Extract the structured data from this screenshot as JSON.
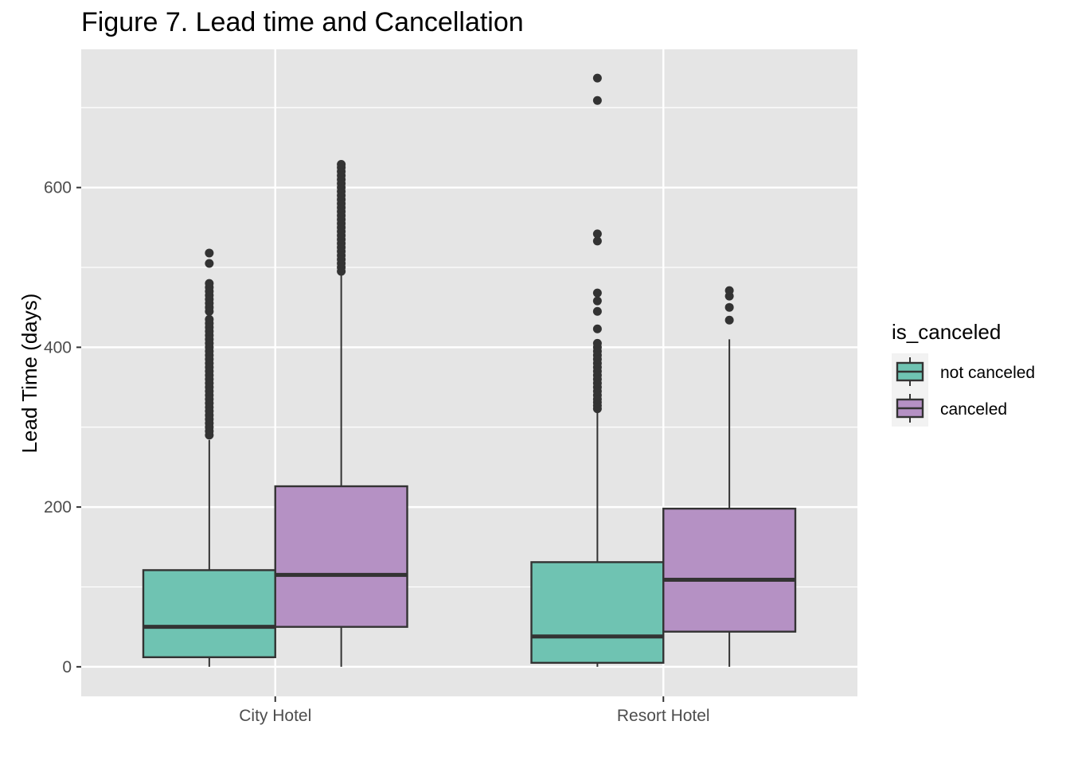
{
  "chart_data": {
    "type": "boxplot",
    "title": "Figure 7. Lead time and Cancellation",
    "xlabel": "",
    "ylabel": "Lead Time (days)",
    "ylim": [
      -37,
      773
    ],
    "y_ticks": [
      0,
      200,
      400,
      600
    ],
    "grid": true,
    "categories": [
      "City Hotel",
      "Resort Hotel"
    ],
    "legend": {
      "title": "is_canceled",
      "position": "right"
    },
    "series": [
      {
        "name": "not canceled",
        "color": "#6fc3b2",
        "boxes": [
          {
            "category": "City Hotel",
            "whisker_low": 0,
            "q1": 12,
            "median": 50,
            "q3": 121,
            "whisker_high": 284,
            "outliers": [
              290,
              295,
              300,
              305,
              310,
              315,
              320,
              325,
              330,
              335,
              340,
              345,
              350,
              355,
              360,
              365,
              370,
              375,
              380,
              385,
              390,
              395,
              400,
              405,
              410,
              415,
              420,
              425,
              430,
              435,
              445,
              450,
              455,
              460,
              465,
              470,
              475,
              480,
              505,
              518
            ]
          },
          {
            "category": "Resort Hotel",
            "whisker_low": 0,
            "q1": 5,
            "median": 38,
            "q3": 131,
            "whisker_high": 320,
            "outliers": [
              323,
              327,
              331,
              335,
              340,
              345,
              350,
              355,
              360,
              365,
              370,
              375,
              380,
              385,
              390,
              395,
              400,
              405,
              423,
              445,
              458,
              468,
              533,
              542,
              709,
              737
            ]
          }
        ]
      },
      {
        "name": "canceled",
        "color": "#b591c4",
        "boxes": [
          {
            "category": "City Hotel",
            "whisker_low": 0,
            "q1": 50,
            "median": 115,
            "q3": 226,
            "whisker_high": 490,
            "outliers": [
              495,
              500,
              505,
              510,
              515,
              520,
              525,
              530,
              535,
              540,
              545,
              550,
              555,
              560,
              565,
              570,
              575,
              580,
              585,
              590,
              595,
              600,
              605,
              610,
              615,
              620,
              625,
              629
            ]
          },
          {
            "category": "Resort Hotel",
            "whisker_low": 0,
            "q1": 44,
            "median": 109,
            "q3": 198,
            "whisker_high": 410,
            "outliers": [
              434,
              450,
              464,
              471
            ]
          }
        ]
      }
    ]
  }
}
